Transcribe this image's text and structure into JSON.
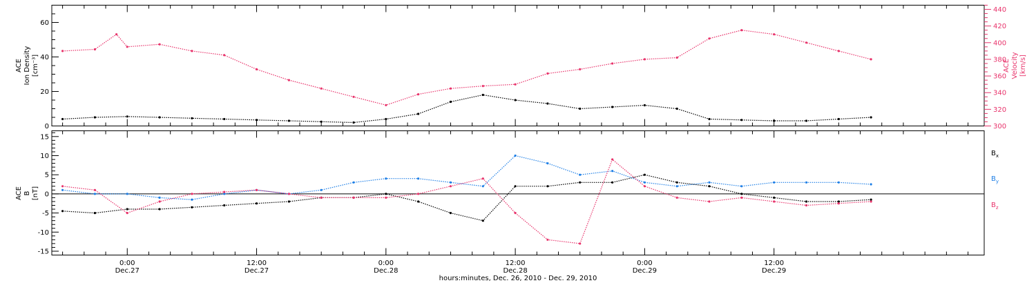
{
  "chart_data": [
    {
      "type": "scatter",
      "title": "",
      "ylabel_lines": [
        "ACE",
        "Ion Density",
        "[cm⁻³]"
      ],
      "y2label_lines": [
        "ACE",
        "Velocity",
        "[km/s]"
      ],
      "ylim": [
        0,
        70
      ],
      "y2lim": [
        300,
        445
      ],
      "yticks": [
        0,
        20,
        40,
        60
      ],
      "y2ticks": [
        300,
        320,
        340,
        360,
        380,
        400,
        420,
        440
      ],
      "grid": false,
      "series": [
        {
          "color": "#000000",
          "axis": "left",
          "x": [
            -6,
            -3,
            0,
            3,
            6,
            9,
            12,
            15,
            18,
            21,
            24,
            27,
            30,
            33,
            36,
            39,
            42,
            45,
            48,
            51,
            54,
            57,
            60,
            63,
            66,
            69
          ],
          "y": [
            4,
            5,
            5.5,
            5,
            4.5,
            4,
            3.5,
            3,
            2.5,
            2,
            4,
            7,
            14,
            18,
            15,
            13,
            10,
            11,
            12,
            10,
            4,
            3.5,
            3,
            3,
            4,
            5
          ]
        },
        {
          "color": "#e8336b",
          "axis": "right",
          "x": [
            -6,
            -3,
            -1,
            0,
            3,
            6,
            9,
            12,
            15,
            18,
            21,
            24,
            27,
            30,
            33,
            36,
            39,
            42,
            45,
            48,
            51,
            54,
            57,
            60,
            63,
            66,
            69
          ],
          "y": [
            390,
            392,
            410,
            395,
            398,
            390,
            385,
            368,
            355,
            345,
            335,
            325,
            338,
            345,
            348,
            350,
            363,
            368,
            375,
            380,
            382,
            405,
            415,
            410,
            400,
            390,
            380
          ]
        }
      ]
    },
    {
      "type": "scatter",
      "title": "",
      "ylabel_lines": [
        "ACE",
        "B",
        "[nT]"
      ],
      "ylim": [
        -16,
        16.5
      ],
      "yticks": [
        -15,
        -10,
        -5,
        0,
        5,
        10,
        15
      ],
      "zero_line": true,
      "legend": [
        {
          "label": "B",
          "sub": "x",
          "color": "#000000"
        },
        {
          "label": "B",
          "sub": "y",
          "color": "#1e7fe6"
        },
        {
          "label": "B",
          "sub": "z",
          "color": "#e8336b"
        }
      ],
      "legend_position": "right",
      "series": [
        {
          "color": "#000000",
          "x": [
            -6,
            -3,
            0,
            3,
            6,
            9,
            12,
            15,
            18,
            21,
            24,
            27,
            30,
            33,
            36,
            39,
            42,
            45,
            48,
            51,
            54,
            57,
            60,
            63,
            66,
            69
          ],
          "y": [
            -4.5,
            -5,
            -4,
            -4,
            -3.5,
            -3,
            -2.5,
            -2,
            -1,
            -1,
            0,
            -2,
            -5,
            -7,
            2,
            2,
            3,
            3,
            5,
            3,
            2,
            0,
            -1,
            -2,
            -2,
            -1.5
          ]
        },
        {
          "color": "#1e7fe6",
          "x": [
            -6,
            -3,
            0,
            3,
            6,
            9,
            12,
            15,
            18,
            21,
            24,
            27,
            30,
            33,
            36,
            39,
            42,
            45,
            48,
            51,
            54,
            57,
            60,
            63,
            66,
            69
          ],
          "y": [
            1,
            0,
            0,
            -1,
            -1.5,
            0,
            1,
            0,
            1,
            3,
            4,
            4,
            3,
            2,
            10,
            8,
            5,
            6,
            3,
            2,
            3,
            2,
            3,
            3,
            3,
            2.5
          ]
        },
        {
          "color": "#e8336b",
          "x": [
            -6,
            -3,
            0,
            3,
            6,
            9,
            12,
            15,
            18,
            21,
            24,
            27,
            30,
            33,
            36,
            39,
            42,
            45,
            48,
            51,
            54,
            57,
            60,
            63,
            66,
            69
          ],
          "y": [
            2,
            1,
            -5,
            -2,
            0,
            0.5,
            1,
            0,
            -1,
            -1,
            -1,
            0,
            2,
            4,
            -5,
            -12,
            -13,
            9,
            2,
            -1,
            -2,
            -1,
            -2,
            -3,
            -2.5,
            -2
          ]
        }
      ]
    }
  ],
  "x_axis": {
    "xlim": [
      -7,
      79.5
    ],
    "major_ticks": [
      0,
      12,
      24,
      36,
      48,
      60
    ],
    "minor_step": 2,
    "tick_labels": [
      {
        "time": "0:00",
        "date": "Dec.27"
      },
      {
        "time": "12:00",
        "date": "Dec.27"
      },
      {
        "time": "0:00",
        "date": "Dec.28"
      },
      {
        "time": "12:00",
        "date": "Dec.28"
      },
      {
        "time": "0:00",
        "date": "Dec.29"
      },
      {
        "time": "12:00",
        "date": "Dec.29"
      }
    ],
    "xlabel": "hours:minutes, Dec. 26, 2010 - Dec. 29, 2010"
  },
  "colors": {
    "axis": "#000000",
    "velocity": "#e8336b",
    "density": "#000000",
    "bx": "#000000",
    "by": "#1e7fe6",
    "bz": "#e8336b"
  }
}
